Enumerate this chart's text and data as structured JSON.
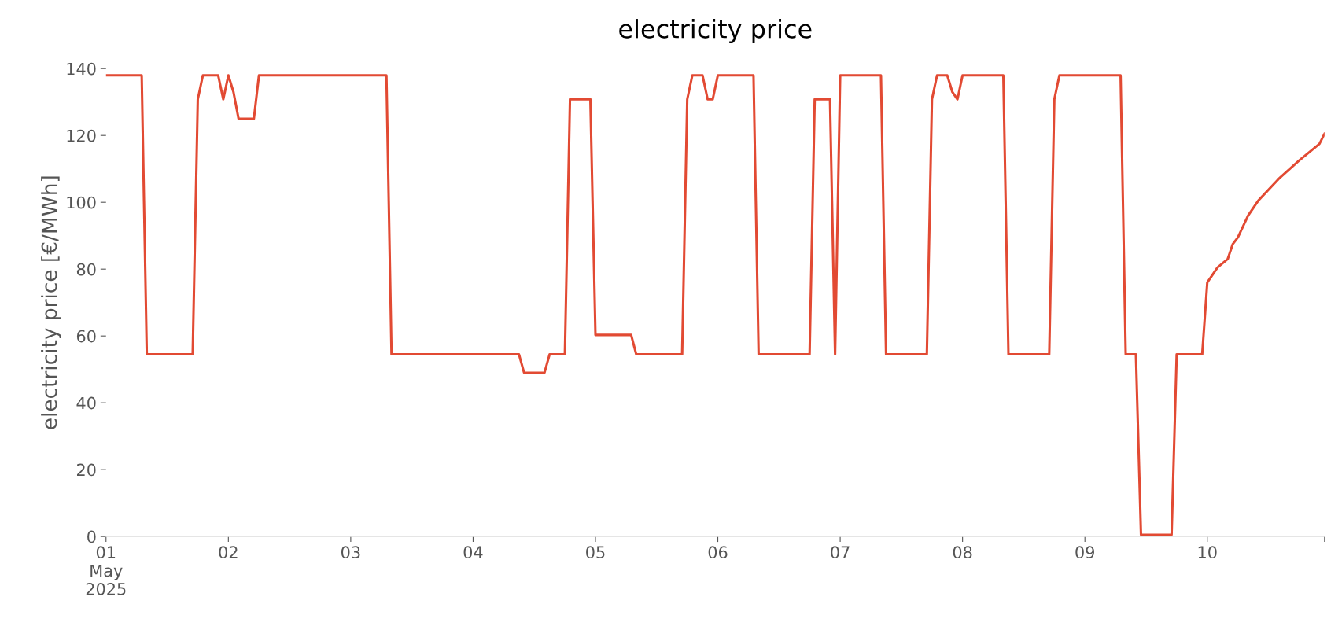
{
  "chart_data": {
    "type": "line",
    "title": "electricity price",
    "ylabel": "electricity price [€/MWh]",
    "x": [
      "2025-05-01T00:00",
      "2025-05-01T07:00",
      "2025-05-01T08:00",
      "2025-05-01T17:00",
      "2025-05-01T18:00",
      "2025-05-01T19:00",
      "2025-05-01T22:00",
      "2025-05-01T23:00",
      "2025-05-02T00:00",
      "2025-05-02T01:00",
      "2025-05-02T02:00",
      "2025-05-02T05:00",
      "2025-05-02T06:00",
      "2025-05-03T07:00",
      "2025-05-03T08:00",
      "2025-05-04T09:00",
      "2025-05-04T10:00",
      "2025-05-04T14:00",
      "2025-05-04T15:00",
      "2025-05-04T18:00",
      "2025-05-04T19:00",
      "2025-05-04T23:00",
      "2025-05-05T00:00",
      "2025-05-05T07:00",
      "2025-05-05T08:00",
      "2025-05-05T17:00",
      "2025-05-05T18:00",
      "2025-05-05T19:00",
      "2025-05-05T21:00",
      "2025-05-05T22:00",
      "2025-05-05T23:00",
      "2025-05-06T00:00",
      "2025-05-06T07:00",
      "2025-05-06T08:00",
      "2025-05-06T18:00",
      "2025-05-06T19:00",
      "2025-05-06T22:00",
      "2025-05-06T23:00",
      "2025-05-07T00:00",
      "2025-05-07T08:00",
      "2025-05-07T09:00",
      "2025-05-07T17:00",
      "2025-05-07T18:00",
      "2025-05-07T19:00",
      "2025-05-07T21:00",
      "2025-05-07T22:00",
      "2025-05-07T23:00",
      "2025-05-08T00:00",
      "2025-05-08T08:00",
      "2025-05-08T09:00",
      "2025-05-08T17:00",
      "2025-05-08T18:00",
      "2025-05-08T19:00",
      "2025-05-09T07:00",
      "2025-05-09T08:00",
      "2025-05-09T10:00",
      "2025-05-09T11:00",
      "2025-05-09T17:00",
      "2025-05-09T18:00",
      "2025-05-09T23:00",
      "2025-05-10T00:00",
      "2025-05-10T02:00",
      "2025-05-10T04:00",
      "2025-05-10T05:00",
      "2025-05-10T06:00",
      "2025-05-10T08:00",
      "2025-05-10T10:00",
      "2025-05-10T14:00",
      "2025-05-10T18:00",
      "2025-05-10T22:00",
      "2025-05-10T23:00"
    ],
    "series": [
      {
        "color": "#e24a33",
        "values": [
          138,
          138,
          54.5,
          54.5,
          130.8,
          138,
          138,
          130.8,
          138,
          133,
          125,
          125,
          138,
          138,
          54.5,
          54.5,
          49,
          49,
          54.5,
          54.5,
          130.8,
          130.8,
          60.3,
          60.3,
          54.5,
          54.5,
          130.8,
          138,
          138,
          130.8,
          130.8,
          138,
          138,
          54.5,
          54.5,
          130.8,
          130.8,
          54.5,
          138,
          138,
          54.5,
          54.5,
          130.8,
          138,
          138,
          133,
          130.8,
          138,
          138,
          54.5,
          54.5,
          130.8,
          138,
          138,
          54.5,
          54.5,
          0.5,
          0.5,
          54.5,
          54.5,
          76,
          80.5,
          83,
          87.5,
          89.5,
          96,
          100.5,
          107,
          112.5,
          117.5,
          120.5
        ]
      }
    ],
    "xlim": [
      "2025-05-01T00:00",
      "2025-05-10T23:00"
    ],
    "xticks": [
      {
        "value": "2025-05-01",
        "label": "01\nMay\n2025"
      },
      {
        "value": "2025-05-02",
        "label": "02"
      },
      {
        "value": "2025-05-03",
        "label": "03"
      },
      {
        "value": "2025-05-04",
        "label": "04"
      },
      {
        "value": "2025-05-05",
        "label": "05"
      },
      {
        "value": "2025-05-06",
        "label": "06"
      },
      {
        "value": "2025-05-07",
        "label": "07"
      },
      {
        "value": "2025-05-08",
        "label": "08"
      },
      {
        "value": "2025-05-09",
        "label": "09"
      },
      {
        "value": "2025-05-10",
        "label": "10"
      },
      {
        "value": "2025-05-10T23:00",
        "label": null
      }
    ],
    "ylim": [
      0,
      140
    ],
    "yticks": [
      0,
      20,
      40,
      60,
      80,
      100,
      120,
      140
    ],
    "grid": false,
    "legend": false
  }
}
